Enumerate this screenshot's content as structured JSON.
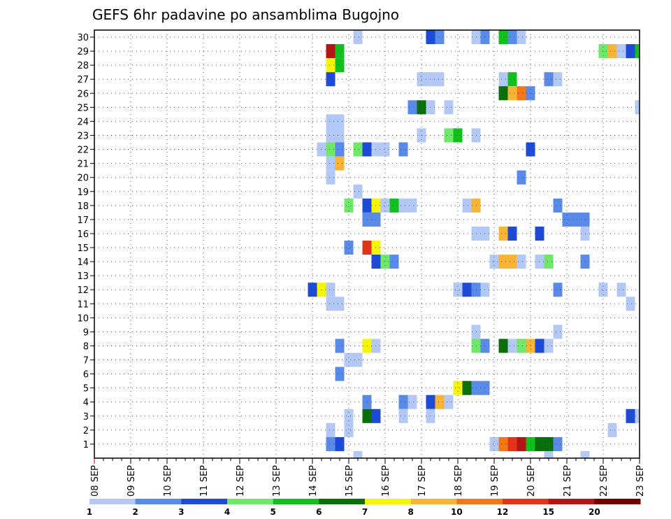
{
  "chart_data": {
    "type": "heatmap",
    "title": "GEFS 6hr padavine po ansamblima Bugojno",
    "xlabel": "",
    "ylabel": "",
    "x_dates": [
      "08 SEP",
      "09 SEP",
      "10 SEP",
      "11 SEP",
      "12 SEP",
      "13 SEP",
      "14 SEP",
      "15 SEP",
      "16 SEP",
      "17 SEP",
      "18 SEP",
      "19 SEP",
      "20 SEP",
      "21 SEP",
      "22 SEP",
      "23 SEP"
    ],
    "x_unit": "day since 08 SEP (6-hourly steps of 0.25)",
    "xlim": [
      0,
      15
    ],
    "y_members": [
      1,
      30
    ],
    "y_ticks": [
      1,
      2,
      3,
      4,
      5,
      6,
      7,
      8,
      9,
      10,
      11,
      12,
      13,
      14,
      15,
      16,
      17,
      18,
      19,
      20,
      21,
      22,
      23,
      24,
      25,
      26,
      27,
      28,
      29,
      30
    ],
    "grid": true,
    "legend": {
      "position": "bottom",
      "labels": [
        "1",
        "2",
        "3",
        "4",
        "5",
        "6",
        "7",
        "8",
        "10",
        "12",
        "15",
        "20"
      ],
      "colors": [
        "#b4c8f5",
        "#5a8ae8",
        "#1e4bd6",
        "#70e66a",
        "#12bf1e",
        "#0a6e0a",
        "#f5f50a",
        "#f7b437",
        "#f07818",
        "#e23418",
        "#b41414",
        "#730000"
      ]
    },
    "cells": [
      {
        "m": 30,
        "d": 7.25,
        "c": 0
      },
      {
        "m": 30,
        "d": 9.25,
        "c": 2
      },
      {
        "m": 30,
        "d": 9.5,
        "c": 1
      },
      {
        "m": 30,
        "d": 10.5,
        "c": 0
      },
      {
        "m": 30,
        "d": 10.75,
        "c": 1
      },
      {
        "m": 30,
        "d": 11.25,
        "c": 4
      },
      {
        "m": 30,
        "d": 11.5,
        "c": 1
      },
      {
        "m": 30,
        "d": 11.75,
        "c": 0
      },
      {
        "m": 29,
        "d": 6.5,
        "c": 10
      },
      {
        "m": 29,
        "d": 6.75,
        "c": 4
      },
      {
        "m": 29,
        "d": 14,
        "c": 3
      },
      {
        "m": 29,
        "d": 14.25,
        "c": 7
      },
      {
        "m": 29,
        "d": 14.5,
        "c": 0
      },
      {
        "m": 29,
        "d": 14.75,
        "c": 2
      },
      {
        "m": 29,
        "d": 15,
        "c": 4
      },
      {
        "m": 28,
        "d": 6.5,
        "c": 6
      },
      {
        "m": 28,
        "d": 6.75,
        "c": 4
      },
      {
        "m": 27,
        "d": 6.5,
        "c": 2
      },
      {
        "m": 27,
        "d": 9,
        "c": 0
      },
      {
        "m": 27,
        "d": 9.25,
        "c": 0
      },
      {
        "m": 27,
        "d": 9.5,
        "c": 0
      },
      {
        "m": 27,
        "d": 11.25,
        "c": 0
      },
      {
        "m": 27,
        "d": 11.5,
        "c": 4
      },
      {
        "m": 27,
        "d": 12.5,
        "c": 1
      },
      {
        "m": 27,
        "d": 12.75,
        "c": 0
      },
      {
        "m": 26,
        "d": 11.25,
        "c": 5
      },
      {
        "m": 26,
        "d": 11.5,
        "c": 7
      },
      {
        "m": 26,
        "d": 11.75,
        "c": 8
      },
      {
        "m": 26,
        "d": 12,
        "c": 1
      },
      {
        "m": 25,
        "d": 8.75,
        "c": 1
      },
      {
        "m": 25,
        "d": 9,
        "c": 5
      },
      {
        "m": 25,
        "d": 9.25,
        "c": 0
      },
      {
        "m": 25,
        "d": 9.75,
        "c": 0
      },
      {
        "m": 25,
        "d": 15,
        "c": 0
      },
      {
        "m": 24,
        "d": 6.5,
        "c": 0
      },
      {
        "m": 24,
        "d": 6.75,
        "c": 0
      },
      {
        "m": 23,
        "d": 6.5,
        "c": 0
      },
      {
        "m": 23,
        "d": 6.75,
        "c": 0
      },
      {
        "m": 23,
        "d": 9,
        "c": 0
      },
      {
        "m": 23,
        "d": 9.75,
        "c": 3
      },
      {
        "m": 23,
        "d": 10,
        "c": 4
      },
      {
        "m": 23,
        "d": 10.5,
        "c": 0
      },
      {
        "m": 22,
        "d": 6.25,
        "c": 0
      },
      {
        "m": 22,
        "d": 6.5,
        "c": 3
      },
      {
        "m": 22,
        "d": 6.75,
        "c": 1
      },
      {
        "m": 22,
        "d": 7.25,
        "c": 3
      },
      {
        "m": 22,
        "d": 7.5,
        "c": 2
      },
      {
        "m": 22,
        "d": 7.75,
        "c": 0
      },
      {
        "m": 22,
        "d": 8,
        "c": 0
      },
      {
        "m": 22,
        "d": 8.5,
        "c": 1
      },
      {
        "m": 22,
        "d": 12,
        "c": 2
      },
      {
        "m": 21,
        "d": 6.5,
        "c": 0
      },
      {
        "m": 21,
        "d": 6.75,
        "c": 7
      },
      {
        "m": 20,
        "d": 6.5,
        "c": 0
      },
      {
        "m": 20,
        "d": 11.75,
        "c": 1
      },
      {
        "m": 19,
        "d": 7.25,
        "c": 0
      },
      {
        "m": 18,
        "d": 7,
        "c": 3
      },
      {
        "m": 18,
        "d": 7.5,
        "c": 2
      },
      {
        "m": 18,
        "d": 7.75,
        "c": 6
      },
      {
        "m": 18,
        "d": 8,
        "c": 0
      },
      {
        "m": 18,
        "d": 8.25,
        "c": 4
      },
      {
        "m": 18,
        "d": 8.5,
        "c": 0
      },
      {
        "m": 18,
        "d": 8.75,
        "c": 0
      },
      {
        "m": 18,
        "d": 10.25,
        "c": 0
      },
      {
        "m": 18,
        "d": 10.5,
        "c": 7
      },
      {
        "m": 18,
        "d": 12.75,
        "c": 1
      },
      {
        "m": 17,
        "d": 7.5,
        "c": 1
      },
      {
        "m": 17,
        "d": 7.75,
        "c": 1
      },
      {
        "m": 17,
        "d": 13,
        "c": 1
      },
      {
        "m": 17,
        "d": 13.25,
        "c": 1
      },
      {
        "m": 17,
        "d": 13.5,
        "c": 1
      },
      {
        "m": 16,
        "d": 10.5,
        "c": 0
      },
      {
        "m": 16,
        "d": 10.75,
        "c": 0
      },
      {
        "m": 16,
        "d": 11.25,
        "c": 7
      },
      {
        "m": 16,
        "d": 11.5,
        "c": 2
      },
      {
        "m": 16,
        "d": 12.25,
        "c": 2
      },
      {
        "m": 16,
        "d": 13.5,
        "c": 0
      },
      {
        "m": 15,
        "d": 7,
        "c": 1
      },
      {
        "m": 15,
        "d": 7.5,
        "c": 9
      },
      {
        "m": 15,
        "d": 7.75,
        "c": 6
      },
      {
        "m": 14,
        "d": 7.75,
        "c": 2
      },
      {
        "m": 14,
        "d": 8,
        "c": 3
      },
      {
        "m": 14,
        "d": 8.25,
        "c": 1
      },
      {
        "m": 14,
        "d": 11,
        "c": 0
      },
      {
        "m": 14,
        "d": 11.25,
        "c": 7
      },
      {
        "m": 14,
        "d": 11.5,
        "c": 7
      },
      {
        "m": 14,
        "d": 11.75,
        "c": 0
      },
      {
        "m": 14,
        "d": 12.25,
        "c": 0
      },
      {
        "m": 14,
        "d": 12.5,
        "c": 3
      },
      {
        "m": 14,
        "d": 13.5,
        "c": 1
      },
      {
        "m": 12,
        "d": 6,
        "c": 2
      },
      {
        "m": 12,
        "d": 6.25,
        "c": 6
      },
      {
        "m": 12,
        "d": 6.5,
        "c": 0
      },
      {
        "m": 12,
        "d": 10,
        "c": 0
      },
      {
        "m": 12,
        "d": 10.25,
        "c": 2
      },
      {
        "m": 12,
        "d": 10.5,
        "c": 1
      },
      {
        "m": 12,
        "d": 10.75,
        "c": 0
      },
      {
        "m": 12,
        "d": 12.75,
        "c": 1
      },
      {
        "m": 12,
        "d": 14,
        "c": 0
      },
      {
        "m": 12,
        "d": 14.5,
        "c": 0
      },
      {
        "m": 11,
        "d": 6.5,
        "c": 0
      },
      {
        "m": 11,
        "d": 6.75,
        "c": 0
      },
      {
        "m": 11,
        "d": 14.75,
        "c": 0
      },
      {
        "m": 9,
        "d": 10.5,
        "c": 0
      },
      {
        "m": 9,
        "d": 12.75,
        "c": 0
      },
      {
        "m": 8,
        "d": 6.75,
        "c": 1
      },
      {
        "m": 8,
        "d": 7.5,
        "c": 6
      },
      {
        "m": 8,
        "d": 7.75,
        "c": 0
      },
      {
        "m": 8,
        "d": 10.5,
        "c": 3
      },
      {
        "m": 8,
        "d": 10.75,
        "c": 1
      },
      {
        "m": 8,
        "d": 11.25,
        "c": 5
      },
      {
        "m": 8,
        "d": 11.5,
        "c": 0
      },
      {
        "m": 8,
        "d": 11.75,
        "c": 3
      },
      {
        "m": 8,
        "d": 12,
        "c": 7
      },
      {
        "m": 8,
        "d": 12.25,
        "c": 2
      },
      {
        "m": 8,
        "d": 12.5,
        "c": 0
      },
      {
        "m": 7,
        "d": 7,
        "c": 0
      },
      {
        "m": 7,
        "d": 7.25,
        "c": 0
      },
      {
        "m": 6,
        "d": 6.75,
        "c": 1
      },
      {
        "m": 5,
        "d": 10,
        "c": 6
      },
      {
        "m": 5,
        "d": 10.25,
        "c": 5
      },
      {
        "m": 5,
        "d": 10.5,
        "c": 1
      },
      {
        "m": 5,
        "d": 10.75,
        "c": 1
      },
      {
        "m": 4,
        "d": 7.5,
        "c": 1
      },
      {
        "m": 4,
        "d": 8.5,
        "c": 1
      },
      {
        "m": 4,
        "d": 8.75,
        "c": 0
      },
      {
        "m": 4,
        "d": 9.25,
        "c": 2
      },
      {
        "m": 4,
        "d": 9.5,
        "c": 7
      },
      {
        "m": 4,
        "d": 9.75,
        "c": 0
      },
      {
        "m": 3,
        "d": 7,
        "c": 0
      },
      {
        "m": 3,
        "d": 7.5,
        "c": 5
      },
      {
        "m": 3,
        "d": 7.75,
        "c": 2
      },
      {
        "m": 3,
        "d": 8.5,
        "c": 0
      },
      {
        "m": 3,
        "d": 9.25,
        "c": 0
      },
      {
        "m": 3,
        "d": 14.75,
        "c": 2
      },
      {
        "m": 3,
        "d": 15,
        "c": 0
      },
      {
        "m": 2,
        "d": 6.5,
        "c": 0
      },
      {
        "m": 2,
        "d": 7,
        "c": 0
      },
      {
        "m": 2,
        "d": 14.25,
        "c": 0
      },
      {
        "m": 1,
        "d": 6.5,
        "c": 1
      },
      {
        "m": 1,
        "d": 6.75,
        "c": 2
      },
      {
        "m": 1,
        "d": 11,
        "c": 0
      },
      {
        "m": 1,
        "d": 11.25,
        "c": 8
      },
      {
        "m": 1,
        "d": 11.5,
        "c": 9
      },
      {
        "m": 1,
        "d": 11.75,
        "c": 10
      },
      {
        "m": 1,
        "d": 12,
        "c": 4
      },
      {
        "m": 1,
        "d": 12.25,
        "c": 5
      },
      {
        "m": 1,
        "d": 12.5,
        "c": 5
      },
      {
        "m": 1,
        "d": 12.75,
        "c": 1
      },
      {
        "m": 0,
        "d": 7.25,
        "c": 0
      },
      {
        "m": 0,
        "d": 12.5,
        "c": 0
      },
      {
        "m": 0,
        "d": 13.5,
        "c": 0
      }
    ]
  }
}
